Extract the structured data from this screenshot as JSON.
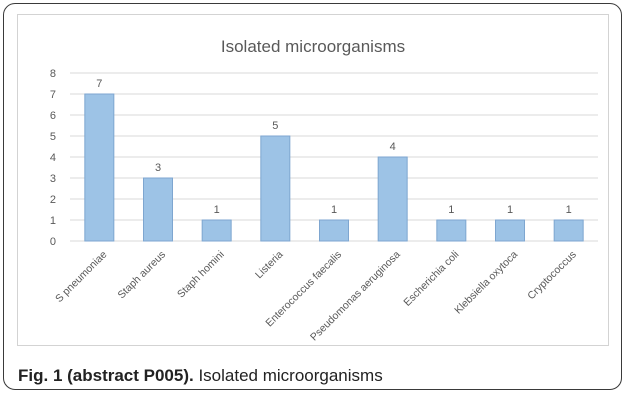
{
  "chart_data": {
    "type": "bar",
    "title": "Isolated microorganisms",
    "categories": [
      "S pneumoniae",
      "Staph aureus",
      "Staph homini",
      "Listeria",
      "Enterococcus faecalis",
      "Pseudomonas aeruginosa",
      "Escherichia coli",
      "Klebsiella oxytoca",
      "Cryptococcus"
    ],
    "values": [
      7,
      3,
      1,
      5,
      1,
      4,
      1,
      1,
      1
    ],
    "ylim": [
      0,
      8
    ],
    "yticks": [
      0,
      1,
      2,
      3,
      4,
      5,
      6,
      7,
      8
    ],
    "xlabel": "",
    "ylabel": "",
    "grid": true,
    "legend": "none",
    "data_labels": true,
    "colors": {
      "bar_fill": "#9dc3e6",
      "bar_stroke": "#7ea6d0",
      "grid": "#d9d9d9",
      "text": "#595959"
    }
  },
  "caption": {
    "lead": "Fig. 1 (abstract P005).",
    "text": " Isolated microorganisms"
  }
}
